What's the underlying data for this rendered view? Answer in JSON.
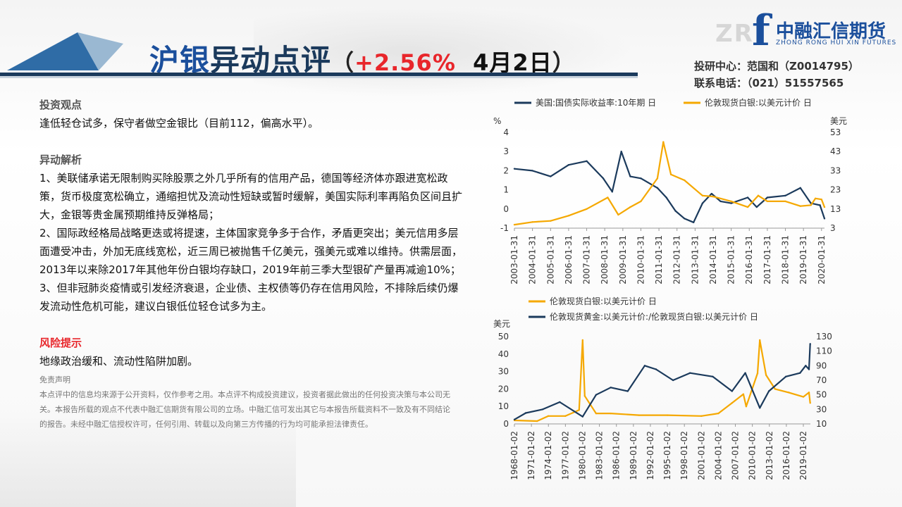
{
  "header": {
    "title_part1": "沪银",
    "title_part2": "异动点评",
    "paren_open": "（",
    "change_pct": "+2.56%",
    "date": "4月2日",
    "paren_close": "）"
  },
  "logo": {
    "watermark": "ZR",
    "mark": "f",
    "cn_name": "中融汇信期货",
    "en_name": "ZHONG RONG HUI XIN FUTURES"
  },
  "contact": {
    "research": "投研中心：范国和（Z0014795）",
    "phone": "联系电话：（021）51557565"
  },
  "content": {
    "view_heading": "投资观点",
    "view_text": "逢低轻仓试多，保守者做空金银比（目前112，偏高水平）。",
    "analysis_heading": "异动解析",
    "analysis_1": "1、美联储承诺无限制购买除股票之外几乎所有的信用产品，德国等经济体亦跟进宽松政策，货币极度宽松确立，通缩担忧及流动性短缺或暂时缓解，美国实际利率再陷负区间且扩大，金银等贵金属预期维持反弹格局；",
    "analysis_2": "2、国际政经格局战略更迭或将提速，主体国家竞争多于合作，矛盾更突出；美元信用多层面遭受冲击，外加无底线宽松，近三周已被抛售千亿美元，强美元或难以维持。供需层面，2013年以来除2017年其他年份白银均存缺口，2019年前三季大型银矿产量再减逾10%；",
    "analysis_3": "3、但非冠肺炎疫情或引发经济衰退，企业债、主权债等仍存在信用风险，不排除后续仍爆发流动性危机可能，建议白银低位轻仓试多为主。",
    "risk_heading": "风险提示",
    "risk_text": "地缘政治缓和、流动性陷阱加剧。",
    "disclaimer_heading": "免责声明",
    "disclaimer_text": "本点评中的信息均来源于公开资料，仅作参考之用。本点评不构成投资建议，投资者据此做出的任何投资决策与本公司无关。本报告所载的观点不代表中融汇信期货有限公司的立场。中融汇信可发出其它与本报告所载资料不一致及有不同结论的报告。未经中融汇信授权许可，任何引用、转载以及向第三方传播的行为均可能承担法律责任。"
  },
  "colors": {
    "navy": "#1b3a5c",
    "gold": "#f5a800",
    "red": "#e8262b",
    "brand_blue": "#1b4f9c"
  },
  "chart_data": [
    {
      "type": "line",
      "series": [
        {
          "name": "美国:国债实际收益率:10年期 日",
          "axis": "left",
          "color": "#1b3a5c",
          "x": [
            "2003-01-31",
            "2004-01-31",
            "2005-01-31",
            "2006-01-31",
            "2007-01-31",
            "2007-12-31",
            "2008-06-30",
            "2008-12-31",
            "2009-06-30",
            "2010-01-31",
            "2010-12-31",
            "2011-06-30",
            "2011-12-31",
            "2012-06-30",
            "2012-12-31",
            "2013-06-30",
            "2013-12-31",
            "2014-06-30",
            "2015-01-31",
            "2015-12-31",
            "2016-06-30",
            "2017-01-31",
            "2018-01-31",
            "2018-11-30",
            "2019-06-30",
            "2019-12-31",
            "2020-03-31"
          ],
          "values": [
            2.1,
            2.0,
            1.7,
            2.3,
            2.5,
            1.6,
            0.9,
            3.0,
            1.7,
            1.6,
            1.1,
            0.6,
            -0.1,
            -0.5,
            -0.7,
            0.3,
            0.8,
            0.4,
            0.3,
            0.6,
            0.1,
            0.6,
            0.7,
            1.1,
            0.3,
            0.2,
            -0.5
          ]
        },
        {
          "name": "伦敦现货白银:以美元计价 日",
          "axis": "right",
          "color": "#f5a800",
          "x": [
            "2003-01-31",
            "2004-01-31",
            "2005-01-31",
            "2006-01-31",
            "2007-01-31",
            "2008-03-31",
            "2008-10-31",
            "2009-06-30",
            "2010-01-31",
            "2010-12-31",
            "2011-04-30",
            "2011-09-30",
            "2012-06-30",
            "2013-06-30",
            "2014-01-31",
            "2015-01-31",
            "2015-12-31",
            "2016-07-31",
            "2017-01-31",
            "2018-01-31",
            "2018-11-30",
            "2019-06-30",
            "2019-09-30",
            "2020-01-31",
            "2020-03-31"
          ],
          "values": [
            4.8,
            6.2,
            6.8,
            9.5,
            13.0,
            19.0,
            10.0,
            14.0,
            17.0,
            29.0,
            48.0,
            31.0,
            28.0,
            20.0,
            19.5,
            17.0,
            14.0,
            20.0,
            17.0,
            17.0,
            14.5,
            15.0,
            18.5,
            18.0,
            14.0
          ]
        }
      ],
      "y_left_ticks": [
        "-1",
        "0",
        "1",
        "2",
        "3",
        "4"
      ],
      "y_right_ticks": [
        "3",
        "13",
        "23",
        "33",
        "43",
        "53"
      ],
      "y_left_unit": "%",
      "y_right_unit": "美元",
      "ylim_left": [
        -1,
        4
      ],
      "ylim_right": [
        3,
        53
      ],
      "xlim": [
        "2003-01-31",
        "2020-03-31"
      ],
      "x_ticks": [
        "2003-01-31",
        "2004-01-31",
        "2005-01-31",
        "2006-01-31",
        "2007-01-31",
        "2008-01-31",
        "2009-01-31",
        "2010-01-31",
        "2011-01-31",
        "2012-01-31",
        "2013-01-31",
        "2014-01-31",
        "2015-01-31",
        "2016-01-31",
        "2017-01-31",
        "2018-01-31",
        "2019-01-31",
        "2020-01-31"
      ],
      "legend": "top"
    },
    {
      "type": "line",
      "series": [
        {
          "name": "伦敦现货白银:以美元计价 日",
          "axis": "left",
          "color": "#f5a800",
          "x": [
            "1968-01-02",
            "1972-01-02",
            "1974-01-02",
            "1977-01-02",
            "1979-06-02",
            "1980-01-18",
            "1980-06-02",
            "1982-06-02",
            "1985-01-02",
            "1990-01-02",
            "1995-01-02",
            "2001-01-02",
            "2004-01-02",
            "2006-06-02",
            "2008-06-02",
            "2008-12-02",
            "2010-12-02",
            "2011-04-28",
            "2012-06-02",
            "2014-01-02",
            "2016-06-02",
            "2019-01-02",
            "2020-01-02",
            "2020-03-19"
          ],
          "values": [
            2.0,
            1.6,
            4.5,
            4.5,
            8.0,
            48.0,
            16.0,
            6.0,
            6.0,
            5.0,
            5.0,
            4.5,
            6.0,
            12.0,
            17.0,
            10.0,
            29.0,
            48.0,
            28.0,
            20.0,
            18.0,
            15.5,
            18.0,
            12.0
          ]
        },
        {
          "name": "伦敦现货黄金:以美元计价:/伦敦现货白银:以美元计价 日",
          "axis": "right",
          "color": "#1b3a5c",
          "x": [
            "1968-01-02",
            "1970-01-02",
            "1973-01-02",
            "1976-01-02",
            "1980-01-18",
            "1982-06-02",
            "1985-01-02",
            "1988-01-02",
            "1991-01-02",
            "1993-01-02",
            "1996-01-02",
            "1999-01-02",
            "2003-01-02",
            "2006-06-02",
            "2008-10-02",
            "2011-04-28",
            "2012-12-02",
            "2015-12-02",
            "2018-06-02",
            "2019-06-02",
            "2020-01-02",
            "2020-03-19"
          ],
          "values": [
            16,
            25,
            30,
            40,
            20,
            50,
            60,
            55,
            90,
            85,
            70,
            80,
            75,
            55,
            80,
            32,
            55,
            75,
            80,
            90,
            85,
            120
          ]
        }
      ],
      "y_left_ticks": [
        "0",
        "10",
        "20",
        "30",
        "40",
        "50"
      ],
      "y_right_ticks": [
        "10",
        "30",
        "50",
        "70",
        "90",
        "110",
        "130"
      ],
      "y_left_unit": "美元",
      "ylim_left": [
        0,
        50
      ],
      "ylim_right": [
        10,
        130
      ],
      "xlim": [
        "1968-01-02",
        "2020-03-31"
      ],
      "x_ticks": [
        "1968-01-02",
        "1971-01-02",
        "1974-01-02",
        "1977-01-02",
        "1980-01-02",
        "1983-01-02",
        "1986-01-02",
        "1989-01-02",
        "1992-01-02",
        "1995-01-02",
        "1998-01-02",
        "2001-01-02",
        "2004-01-02",
        "2007-01-02",
        "2010-01-02",
        "2013-01-02",
        "2016-01-02",
        "2019-01-02"
      ],
      "legend": "top"
    }
  ]
}
